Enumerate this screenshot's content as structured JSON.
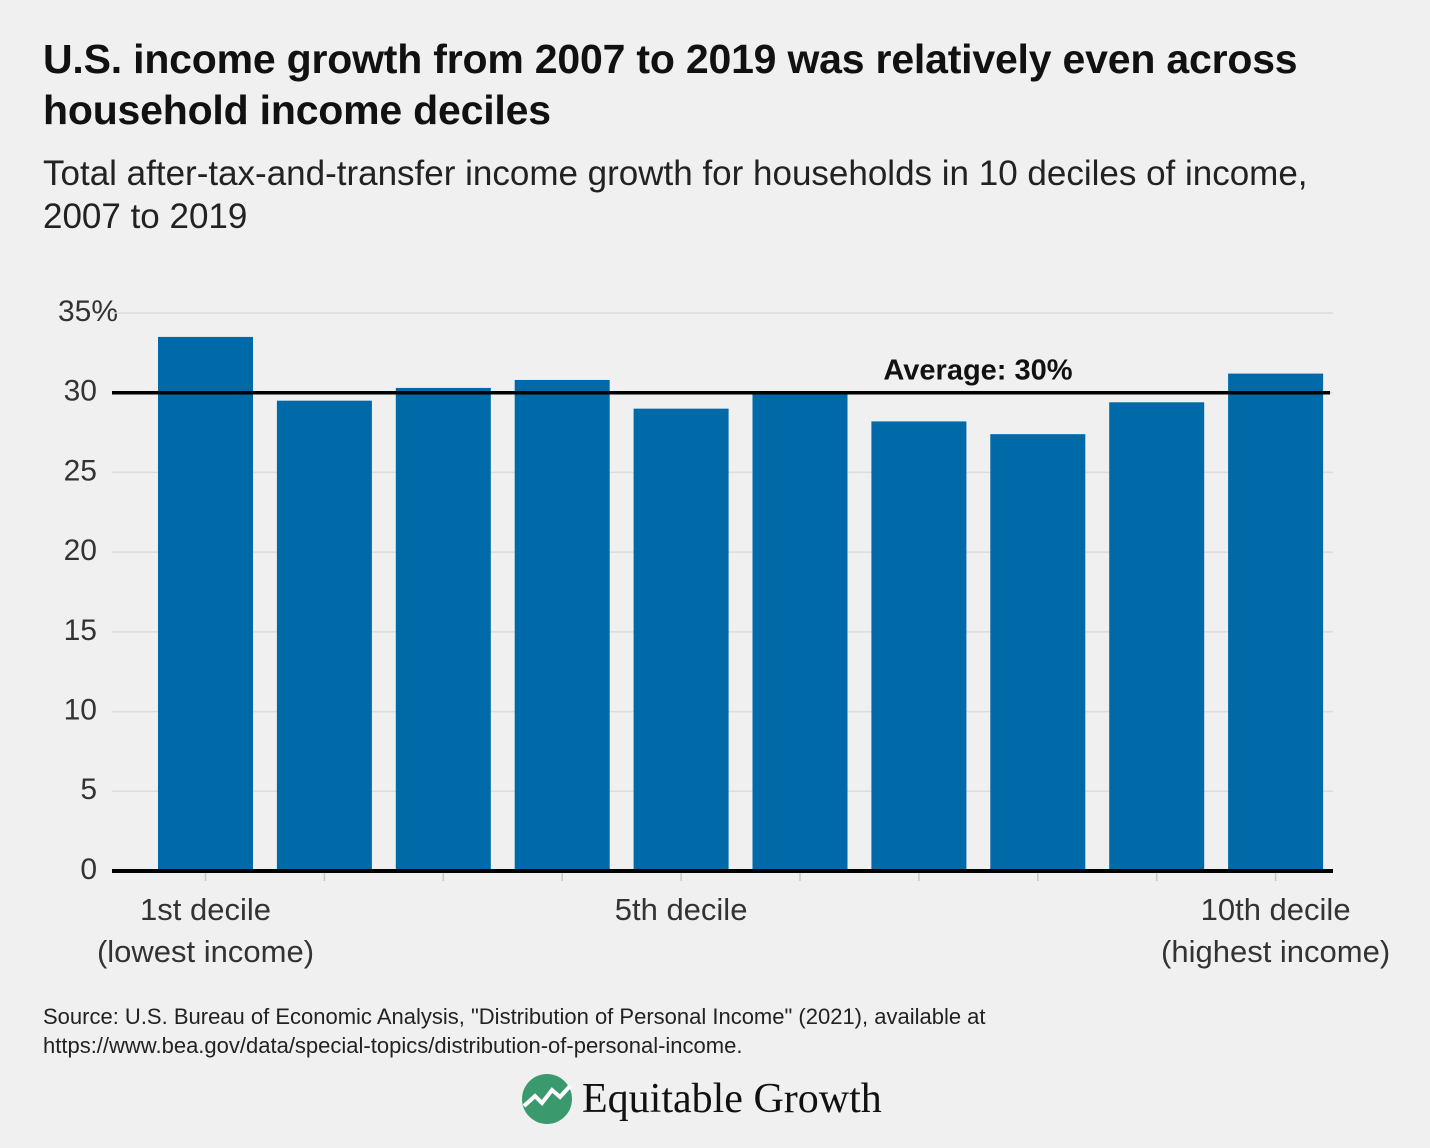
{
  "chart_data": {
    "type": "bar",
    "title": "U.S. income growth from 2007 to 2019 was relatively even across household income deciles",
    "subtitle": "Total after-tax-and-transfer income growth for households in 10 deciles of income, 2007 to 2019",
    "categories": [
      "1st decile\n(lowest income)",
      null,
      null,
      null,
      "5th decile",
      null,
      null,
      null,
      null,
      "10th decile\n(highest income)"
    ],
    "values": [
      33.5,
      29.5,
      30.3,
      30.8,
      29.0,
      30.0,
      28.2,
      27.4,
      29.4,
      31.2
    ],
    "color": "#006aa9",
    "ylim": [
      0,
      35
    ],
    "yticks": [
      0,
      5,
      10,
      15,
      20,
      25,
      30,
      {
        "value": 35,
        "label": "35%"
      }
    ],
    "grid": true,
    "average": {
      "value": 30,
      "label": "Average: 30%"
    },
    "source": "Source: U.S. Bureau of Economic Analysis, \"Distribution of Personal Income\" (2021), available at https://www.bea.gov/data/special-topics/distribution-of-personal-income.",
    "logo": "Equitable Growth"
  }
}
